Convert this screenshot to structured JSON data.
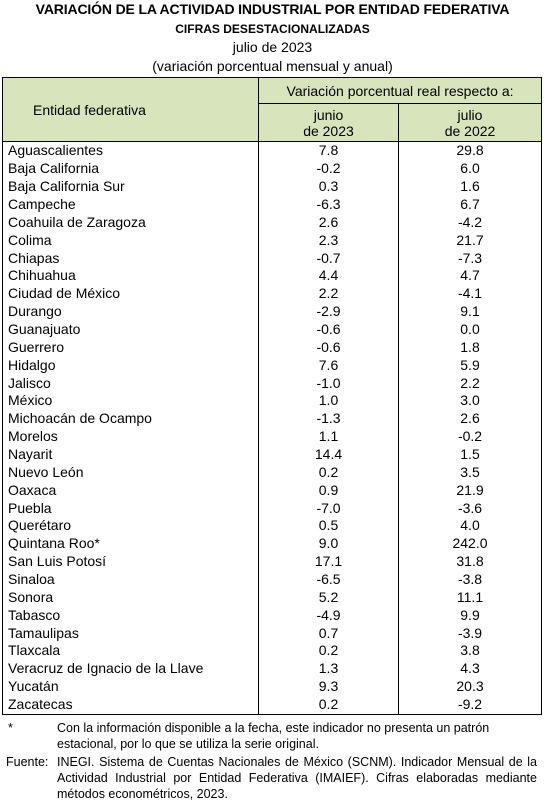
{
  "header": {
    "title": "VARIACIÓN DE LA ACTIVIDAD INDUSTRIAL POR ENTIDAD FEDERATIVA",
    "subtitle": "CIFRAS DESESTACIONALIZADAS",
    "period": "julio de 2023",
    "note": "(variación porcentual mensual y anual)"
  },
  "table": {
    "entity_header": "Entidad federativa",
    "span_header": "Variación porcentual real respecto a:",
    "columns": [
      [
        "junio",
        "de 2023"
      ],
      [
        "julio",
        "de 2022"
      ]
    ],
    "rows": [
      [
        "Aguascalientes",
        "7.8",
        "29.8"
      ],
      [
        "Baja California",
        "-0.2",
        "6.0"
      ],
      [
        "Baja California Sur",
        "0.3",
        "1.6"
      ],
      [
        "Campeche",
        "-6.3",
        "6.7"
      ],
      [
        "Coahuila de Zaragoza",
        "2.6",
        "-4.2"
      ],
      [
        "Colima",
        "2.3",
        "21.7"
      ],
      [
        "Chiapas",
        "-0.7",
        "-7.3"
      ],
      [
        "Chihuahua",
        "4.4",
        "4.7"
      ],
      [
        "Ciudad de México",
        "2.2",
        "-4.1"
      ],
      [
        "Durango",
        "-2.9",
        "9.1"
      ],
      [
        "Guanajuato",
        "-0.6",
        "0.0"
      ],
      [
        "Guerrero",
        "-0.6",
        "1.8"
      ],
      [
        "Hidalgo",
        "7.6",
        "5.9"
      ],
      [
        "Jalisco",
        "-1.0",
        "2.2"
      ],
      [
        "México",
        "1.0",
        "3.0"
      ],
      [
        "Michoacán de Ocampo",
        "-1.3",
        "2.6"
      ],
      [
        "Morelos",
        "1.1",
        "-0.2"
      ],
      [
        "Nayarit",
        "14.4",
        "1.5"
      ],
      [
        "Nuevo León",
        "0.2",
        "3.5"
      ],
      [
        "Oaxaca",
        "0.9",
        "21.9"
      ],
      [
        "Puebla",
        "-7.0",
        "-3.6"
      ],
      [
        "Querétaro",
        "0.5",
        "4.0"
      ],
      [
        "Quintana Roo*",
        "9.0",
        "242.0"
      ],
      [
        "San Luis Potosí",
        "17.1",
        "31.8"
      ],
      [
        "Sinaloa",
        "-6.5",
        "-3.8"
      ],
      [
        "Sonora",
        "5.2",
        "11.1"
      ],
      [
        "Tabasco",
        "-4.9",
        "9.9"
      ],
      [
        "Tamaulipas",
        "0.7",
        "-3.9"
      ],
      [
        "Tlaxcala",
        "0.2",
        "3.8"
      ],
      [
        "Veracruz de Ignacio de la Llave",
        "1.3",
        "4.3"
      ],
      [
        "Yucatán",
        "9.3",
        "20.3"
      ],
      [
        "Zacatecas",
        "0.2",
        "-9.2"
      ]
    ]
  },
  "footnotes": {
    "asterisk": {
      "mark": "*",
      "text": "Con la información disponible a la fecha, este indicador no presenta un patrón estacional, por lo que se utiliza la serie original."
    },
    "source": {
      "label": "Fuente:",
      "text": "INEGI. Sistema de Cuentas Nacionales de México (SCNM). Indicador Mensual de la Actividad Industrial por Entidad Federativa (IMAIEF). Cifras elaboradas mediante métodos econométricos, 2023."
    }
  }
}
